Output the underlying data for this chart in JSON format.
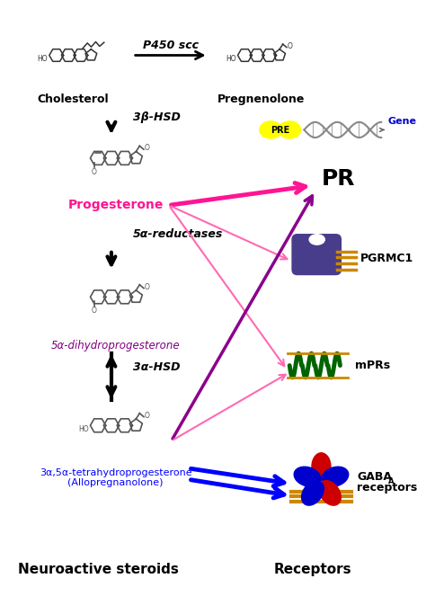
{
  "bg_color": "#ffffff",
  "cholesterol_label": "Cholesterol",
  "pregnenolone_label": "Pregnenolone",
  "p450_label": "P450 scc",
  "hsd3b_label": "3β-HSD",
  "progesterone_label": "Progesterone",
  "reductase_label": "5α-reductases",
  "dhp_label": "5α-dihydroprogesterone",
  "hsd3a_label": "3α-HSD",
  "allo_line1": "3α,5α-tetrahydroprogesterone",
  "allo_line2": "(Allopregnanolone)",
  "PR_label": "PR",
  "PGRMC1_label": "PGRMC1",
  "mPRs_label": "mPRs",
  "PRE_label": "PRE",
  "Gene_label": "Gene",
  "neuroactive_label": "Neuroactive steroids",
  "receptors_label": "Receptors",
  "progesterone_color": "#ff1493",
  "dhp_color": "#800080",
  "allopregnanolone_color": "#0000ff",
  "arrow_pink": "#ff69b4",
  "arrow_purple": "#8b008b",
  "arrow_blue": "#0000ff",
  "PRE_yellow": "#ffff00",
  "gene_color": "#0000cc",
  "PGRMC1_color": "#483d8b",
  "mPRs_color": "#006400",
  "gaba_red": "#cc0000",
  "gaba_blue": "#0000cc",
  "gaba_gold": "#cc8800"
}
